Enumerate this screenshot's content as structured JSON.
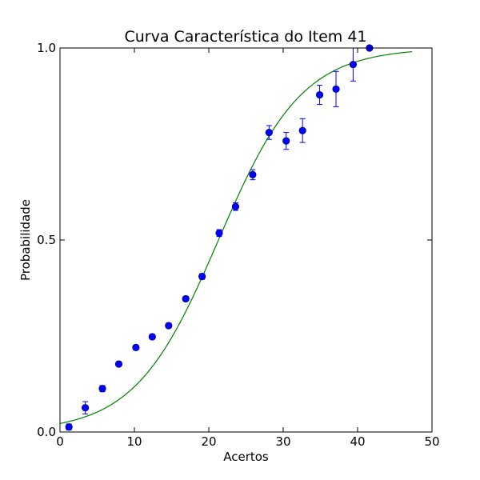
{
  "chart_data": {
    "type": "scatter",
    "title": "Curva Característica do Item 41",
    "xlabel": "Acertos",
    "ylabel": "Probabilidade",
    "xlim": [
      0,
      50
    ],
    "ylim": [
      0,
      1
    ],
    "xticks": [
      0,
      10,
      20,
      30,
      40,
      50
    ],
    "xtick_labels": [
      "0",
      "10",
      "20",
      "30",
      "40",
      "50"
    ],
    "yticks": [
      0,
      0.5,
      1
    ],
    "ytick_labels": [
      "0.0",
      "0.5",
      "1.0"
    ],
    "grid": false,
    "legend": "none",
    "series": [
      {
        "kind": "scatter-errorbar",
        "color": "#0000ff",
        "edge_color": "#000080",
        "error_color": "#0000ff",
        "points": [
          {
            "x": 1.2,
            "y": 0.013,
            "err": 0.008
          },
          {
            "x": 3.4,
            "y": 0.063,
            "err": 0.016
          },
          {
            "x": 5.7,
            "y": 0.113,
            "err": 0.008
          },
          {
            "x": 7.9,
            "y": 0.177,
            "err": 0.006
          },
          {
            "x": 10.2,
            "y": 0.22,
            "err": 0.006
          },
          {
            "x": 12.4,
            "y": 0.248,
            "err": 0.006
          },
          {
            "x": 14.6,
            "y": 0.277,
            "err": 0.006
          },
          {
            "x": 16.9,
            "y": 0.347,
            "err": 0.006
          },
          {
            "x": 19.1,
            "y": 0.405,
            "err": 0.007
          },
          {
            "x": 21.4,
            "y": 0.518,
            "err": 0.009
          },
          {
            "x": 23.6,
            "y": 0.587,
            "err": 0.01
          },
          {
            "x": 25.9,
            "y": 0.67,
            "err": 0.013
          },
          {
            "x": 28.1,
            "y": 0.78,
            "err": 0.018
          },
          {
            "x": 30.4,
            "y": 0.758,
            "err": 0.022
          },
          {
            "x": 32.6,
            "y": 0.785,
            "err": 0.031
          },
          {
            "x": 34.9,
            "y": 0.878,
            "err": 0.025
          },
          {
            "x": 37.1,
            "y": 0.893,
            "err": 0.046
          },
          {
            "x": 39.4,
            "y": 0.957,
            "err": 0.043
          },
          {
            "x": 41.6,
            "y": 1.0,
            "err": 0.0
          }
        ]
      },
      {
        "kind": "line",
        "color": "#008000",
        "model": "logistic",
        "a": 0.178,
        "b": 21.3,
        "x_range": [
          0,
          47.3
        ]
      }
    ]
  }
}
